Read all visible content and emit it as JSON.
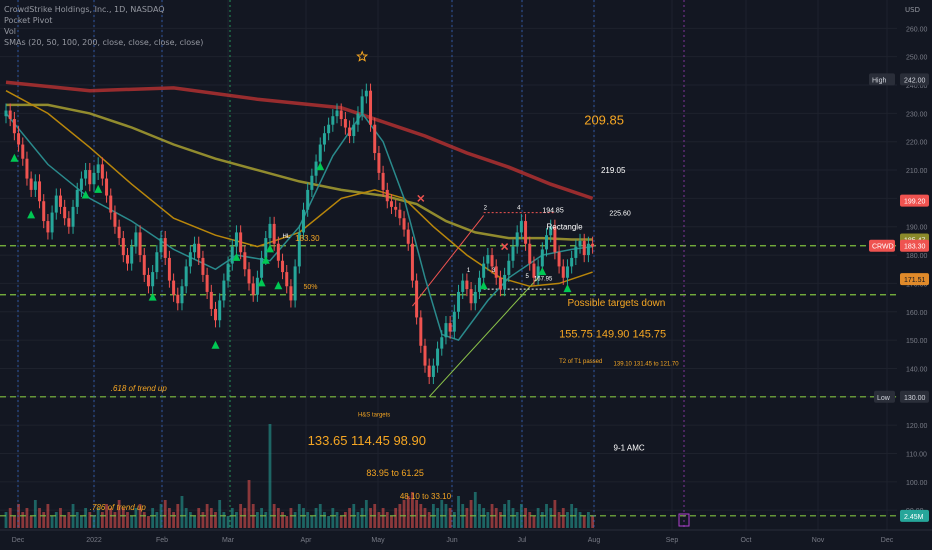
{
  "legend": {
    "symbol": "CrowdStrike Holdings, Inc., 1D, NASDAQ",
    "line2": "Pocket Pivot",
    "line3": "Vol",
    "line4": "SMAs (20, 50, 100, 200, close, close, close, close)"
  },
  "currency": "USD",
  "colors": {
    "background": "#131722",
    "grid": "#1e222d",
    "up": "#26a69a",
    "down": "#ef5350",
    "sma20": "#2a8a8c",
    "sma50": "#b8860b",
    "sma100": "#a8a030",
    "sma200": "#b03030",
    "annotation": "#f5a623",
    "green_line": "#8bc34a",
    "dashed": "#7fbf3f",
    "marker": "#00c853"
  },
  "chart_data": {
    "type": "candlestick",
    "x_labels": [
      "Dec",
      "2022",
      "Feb",
      "Mar",
      "Apr",
      "May",
      "Jun",
      "Jul",
      "Aug",
      "Sep",
      "Oct",
      "Nov",
      "Dec"
    ],
    "y_ticks": [
      90,
      100,
      110,
      120,
      130,
      140,
      150,
      160,
      170,
      180,
      190,
      200,
      210,
      220,
      230,
      240,
      250,
      260
    ],
    "ylim": [
      83,
      270
    ],
    "price_tags": [
      {
        "label": "High",
        "value": "242.00",
        "price": 242.0,
        "style": "neutral"
      },
      {
        "label": "",
        "value": "199.20",
        "price": 199.2,
        "style": "red"
      },
      {
        "label": "",
        "value": "185.47",
        "price": 185.5,
        "style": "olive"
      },
      {
        "label": "CRWD",
        "value": "183.30",
        "price": 183.3,
        "style": "red"
      },
      {
        "label": "",
        "value": "171.51",
        "price": 171.5,
        "style": "orange"
      },
      {
        "label": "Low",
        "value": "130.00",
        "price": 130.0,
        "style": "neutral"
      },
      {
        "label": "",
        "value": "2.45M",
        "price": 88.0,
        "style": "teal"
      }
    ],
    "closes": [
      231,
      228,
      223,
      219,
      214,
      207,
      203,
      206,
      199,
      192,
      188,
      195,
      201,
      197,
      193,
      190,
      197,
      203,
      207,
      210,
      205,
      209,
      212,
      207,
      201,
      195,
      190,
      186,
      180,
      177,
      183,
      188,
      180,
      173,
      169,
      174,
      181,
      186,
      179,
      171,
      166,
      163,
      169,
      176,
      181,
      184,
      179,
      173,
      167,
      161,
      157,
      164,
      171,
      177,
      183,
      188,
      181,
      175,
      170,
      166,
      172,
      179,
      186,
      191,
      184,
      178,
      174,
      169,
      164,
      176,
      188,
      196,
      203,
      208,
      213,
      219,
      223,
      226,
      229,
      231,
      228,
      225,
      222,
      226,
      230,
      236,
      238,
      226,
      216,
      209,
      203,
      199,
      197,
      196,
      193,
      189,
      184,
      171,
      158,
      148,
      141,
      137,
      141,
      147,
      151,
      156,
      153,
      160,
      167,
      171,
      168,
      163,
      167,
      172,
      177,
      180,
      176,
      172,
      168,
      173,
      178,
      183,
      188,
      192,
      184,
      177,
      172,
      176,
      182,
      187,
      190,
      181,
      176,
      172,
      176,
      179,
      183,
      185,
      180,
      184,
      183
    ],
    "volumes": [
      4,
      5,
      3,
      6,
      4,
      5,
      3,
      7,
      5,
      4,
      6,
      3,
      4,
      5,
      3,
      4,
      6,
      4,
      3,
      5,
      4,
      3,
      5,
      4,
      6,
      5,
      4,
      7,
      5,
      4,
      3,
      5,
      6,
      4,
      3,
      5,
      4,
      6,
      7,
      5,
      4,
      6,
      8,
      5,
      4,
      3,
      5,
      4,
      6,
      5,
      4,
      7,
      4,
      3,
      5,
      4,
      6,
      5,
      12,
      6,
      4,
      5,
      4,
      26,
      6,
      5,
      4,
      3,
      5,
      4,
      6,
      5,
      4,
      3,
      5,
      6,
      4,
      3,
      5,
      4,
      3,
      4,
      5,
      6,
      4,
      5,
      7,
      5,
      6,
      4,
      5,
      4,
      3,
      5,
      6,
      7,
      8,
      9,
      7,
      6,
      5,
      4,
      6,
      5,
      7,
      6,
      5,
      4,
      8,
      6,
      5,
      7,
      9,
      6,
      5,
      4,
      6,
      5,
      4,
      6,
      7,
      5,
      4,
      6,
      5,
      4,
      3,
      5,
      4,
      6,
      5,
      7,
      4,
      5,
      4,
      6,
      5,
      4,
      3,
      4,
      3
    ],
    "sma20": [
      [
        0,
        230
      ],
      [
        10,
        212
      ],
      [
        20,
        200
      ],
      [
        30,
        192
      ],
      [
        40,
        182
      ],
      [
        50,
        175
      ],
      [
        55,
        180
      ],
      [
        63,
        178
      ],
      [
        70,
        190
      ],
      [
        78,
        215
      ],
      [
        85,
        230
      ],
      [
        90,
        220
      ],
      [
        95,
        200
      ],
      [
        100,
        172
      ],
      [
        104,
        152
      ],
      [
        108,
        150
      ],
      [
        115,
        164
      ],
      [
        120,
        172
      ],
      [
        128,
        180
      ],
      [
        135,
        182
      ],
      [
        140,
        183
      ]
    ],
    "sma50": [
      [
        0,
        238
      ],
      [
        10,
        230
      ],
      [
        20,
        218
      ],
      [
        30,
        205
      ],
      [
        40,
        193
      ],
      [
        50,
        187
      ],
      [
        60,
        183
      ],
      [
        70,
        188
      ],
      [
        80,
        200
      ],
      [
        88,
        203
      ],
      [
        95,
        200
      ],
      [
        102,
        190
      ],
      [
        110,
        180
      ],
      [
        118,
        172
      ],
      [
        125,
        169
      ],
      [
        132,
        170
      ],
      [
        140,
        174
      ]
    ],
    "sma100": [
      [
        0,
        233
      ],
      [
        10,
        233
      ],
      [
        20,
        230
      ],
      [
        30,
        225
      ],
      [
        40,
        219
      ],
      [
        50,
        214
      ],
      [
        60,
        210
      ],
      [
        70,
        206
      ],
      [
        80,
        203
      ],
      [
        90,
        201
      ],
      [
        98,
        198
      ],
      [
        105,
        192
      ],
      [
        112,
        188
      ],
      [
        120,
        186
      ],
      [
        128,
        186
      ],
      [
        135,
        185.5
      ],
      [
        140,
        185.5
      ]
    ],
    "sma200": [
      [
        0,
        241
      ],
      [
        20,
        238
      ],
      [
        40,
        239
      ],
      [
        60,
        235
      ],
      [
        80,
        232
      ],
      [
        90,
        227
      ],
      [
        100,
        222
      ],
      [
        110,
        216
      ],
      [
        120,
        211
      ],
      [
        130,
        205
      ],
      [
        140,
        200
      ]
    ],
    "pocket_pivots_down": [
      2,
      6,
      19,
      22,
      35,
      50,
      55,
      61,
      63,
      65
    ],
    "pocket_pivots_up": [
      62,
      75,
      114,
      128,
      134
    ],
    "lines": {
      "h_183": 183.3,
      "h_50pct": 166.0,
      "h_618": 130.0,
      "h_786": 88.0,
      "r_top": 195.0,
      "r_bottom": 168.0
    },
    "annotations": [
      {
        "text": "209.85",
        "size": 13,
        "price": 226,
        "xi": 138
      },
      {
        "text": "219.05",
        "size": 8,
        "price": 209,
        "xi": 142
      },
      {
        "text": "225.60",
        "size": 7,
        "price": 194,
        "xi": 144
      },
      {
        "text": "194.85",
        "size": 7,
        "price": 195,
        "xi": 128
      },
      {
        "text": "Rectangle",
        "size": 8,
        "price": 189,
        "xi": 129
      },
      {
        "text": "H&S targets",
        "size": 6,
        "price": 123,
        "xi": 84
      },
      {
        "text": "133.65  114.45  98.90",
        "size": 13,
        "price": 113,
        "xi": 72
      },
      {
        "text": "83.95 to 61.25",
        "size": 9,
        "price": 102,
        "xi": 86
      },
      {
        "text": "48.10 to 33.10",
        "size": 8,
        "price": 94,
        "xi": 94
      },
      {
        "text": "Possible targets down",
        "size": 10,
        "price": 162,
        "xi": 134
      },
      {
        "text": "155.75  149.90  145.75",
        "size": 11,
        "price": 151,
        "xi": 132
      },
      {
        "text": "T2 of T1 passed",
        "size": 6,
        "price": 142,
        "xi": 132
      },
      {
        "text": "139.10   131.45 to 121.70",
        "size": 6,
        "price": 141,
        "xi": 145
      },
      {
        "text": "9-1 AMC",
        "size": 8,
        "price": 111,
        "xi": 145
      },
      {
        "text": "HL",
        "size": 6,
        "price": 186,
        "xi": 66
      },
      {
        "text": "183.30",
        "size": 8,
        "price": 185,
        "xi": 69
      },
      {
        "text": "50%",
        "size": 7,
        "price": 168,
        "xi": 71
      },
      {
        "text": ".618 of trend up",
        "size": 8,
        "price": 132,
        "xi": 25
      },
      {
        "text": ".786 of trend up",
        "size": 8,
        "price": 90,
        "xi": 20
      },
      {
        "text": "167.95",
        "size": 6,
        "price": 171,
        "xi": 126
      },
      {
        "text": "2",
        "size": 6,
        "price": 196,
        "xi": 114
      },
      {
        "text": "4",
        "size": 6,
        "price": 196,
        "xi": 122
      },
      {
        "text": "1",
        "size": 6,
        "price": 174,
        "xi": 110
      },
      {
        "text": "3",
        "size": 6,
        "price": 174,
        "xi": 116
      },
      {
        "text": "5",
        "size": 6,
        "price": 172,
        "xi": 124
      }
    ]
  }
}
